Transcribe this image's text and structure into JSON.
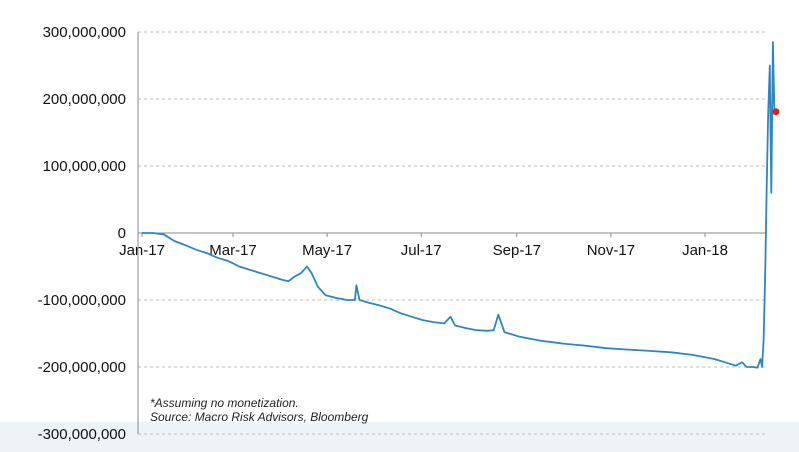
{
  "chart_data": {
    "type": "line",
    "title": "",
    "xlabel": "",
    "ylabel": "",
    "ylim": [
      -300000000,
      300000000
    ],
    "yticks": [
      300000000,
      200000000,
      100000000,
      0,
      -100000000,
      -200000000,
      -300000000
    ],
    "ytick_labels": [
      "300,000,000",
      "200,000,000",
      "100,000,000",
      "0",
      "-100,000,000",
      "-200,000,000",
      "-300,000,000"
    ],
    "xlim": [
      "2017-01-01",
      "2018-03-01"
    ],
    "xticks": [
      "2017-01-01",
      "2017-03-01",
      "2017-05-01",
      "2017-07-01",
      "2017-09-01",
      "2017-11-01",
      "2018-01-01"
    ],
    "xtick_labels": [
      "Jan-17",
      "Mar-17",
      "May-17",
      "Jul-17",
      "Sep-17",
      "Nov-17",
      "Jan-18"
    ],
    "grid": "horizontal dashed",
    "line_color": "#2e86c1",
    "marker_color": "#e02020",
    "series": [
      {
        "x": [
          "2017-01-01",
          "2017-01-08",
          "2017-01-15",
          "2017-01-22",
          "2017-01-29",
          "2017-02-05",
          "2017-02-12",
          "2017-02-19",
          "2017-02-26",
          "2017-03-05",
          "2017-03-12",
          "2017-03-19",
          "2017-03-26",
          "2017-04-02",
          "2017-04-06",
          "2017-04-10",
          "2017-04-14",
          "2017-04-18",
          "2017-04-21",
          "2017-04-25",
          "2017-04-30",
          "2017-05-07",
          "2017-05-14",
          "2017-05-19",
          "2017-05-20",
          "2017-05-22",
          "2017-05-28",
          "2017-06-04",
          "2017-06-11",
          "2017-06-18",
          "2017-06-25",
          "2017-07-02",
          "2017-07-09",
          "2017-07-16",
          "2017-07-20",
          "2017-07-23",
          "2017-07-30",
          "2017-08-06",
          "2017-08-13",
          "2017-08-17",
          "2017-08-20",
          "2017-08-24",
          "2017-08-27",
          "2017-09-03",
          "2017-09-10",
          "2017-09-17",
          "2017-09-24",
          "2017-10-01",
          "2017-10-15",
          "2017-10-29",
          "2017-11-12",
          "2017-11-26",
          "2017-12-10",
          "2017-12-24",
          "2018-01-07",
          "2018-01-14",
          "2018-01-21",
          "2018-01-25",
          "2018-01-28",
          "2018-02-01",
          "2018-02-04",
          "2018-02-06",
          "2018-02-07",
          "2018-02-08",
          "2018-02-09",
          "2018-02-10",
          "2018-02-11",
          "2018-02-12",
          "2018-02-13",
          "2018-02-14",
          "2018-02-15",
          "2018-02-16"
        ],
        "values": [
          0,
          0,
          -2000000,
          -12000000,
          -18000000,
          -25000000,
          -30000000,
          -37000000,
          -42000000,
          -50000000,
          -55000000,
          -60000000,
          -65000000,
          -70000000,
          -72000000,
          -65000000,
          -60000000,
          -50000000,
          -60000000,
          -80000000,
          -93000000,
          -97000000,
          -100000000,
          -100000000,
          -78000000,
          -100000000,
          -104000000,
          -108000000,
          -113000000,
          -120000000,
          -125000000,
          -130000000,
          -133000000,
          -135000000,
          -125000000,
          -138000000,
          -142000000,
          -145000000,
          -146000000,
          -145000000,
          -122000000,
          -148000000,
          -150000000,
          -155000000,
          -158000000,
          -161000000,
          -163000000,
          -165000000,
          -168000000,
          -172000000,
          -174000000,
          -176000000,
          -178000000,
          -182000000,
          -188000000,
          -193000000,
          -198000000,
          -193000000,
          -200000000,
          -200000000,
          -201000000,
          -188000000,
          -200000000,
          -160000000,
          -60000000,
          70000000,
          180000000,
          250000000,
          60000000,
          285000000,
          180000000,
          181000000
        ]
      }
    ],
    "marker": {
      "x": "2018-02-16",
      "y": 181000000
    }
  },
  "notes": {
    "line1": "*Assuming no monetization.",
    "line2": "Source: Macro Risk Advisors, Bloomberg"
  }
}
